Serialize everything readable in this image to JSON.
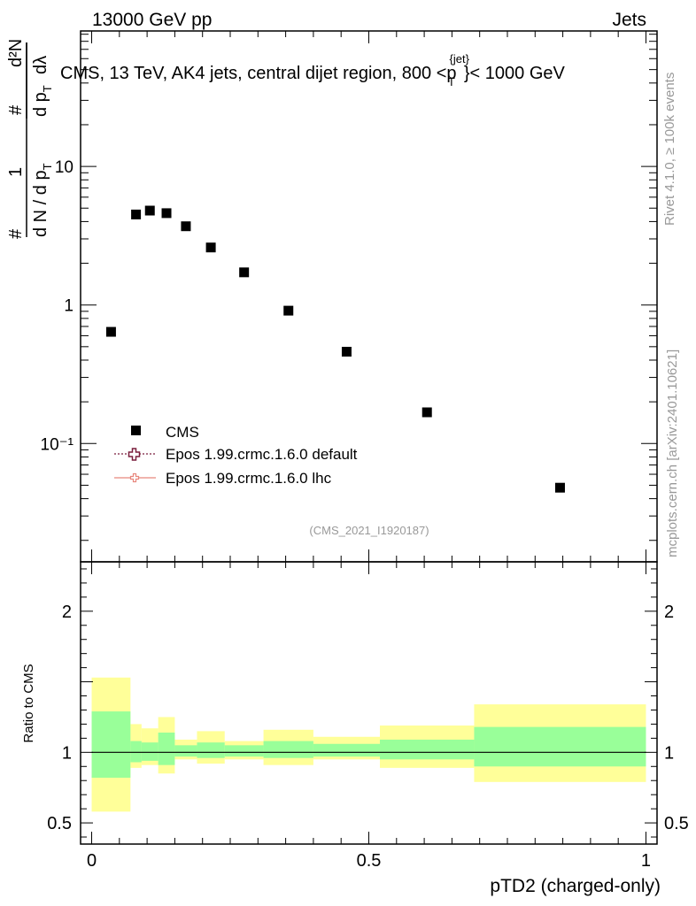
{
  "header": {
    "left": "13000 GeV pp",
    "right": "Jets"
  },
  "title": {
    "main": "CMS, 13 TeV, AK4 jets, central dijet region, 800 <p",
    "sup": "{jet}",
    "sub": "T",
    "end": "}< 1000 GeV"
  },
  "side_text": {
    "rivet": "Rivet 4.1.0, ≥ 100k events",
    "mcplots": "mcplots.cern.ch [arXiv:2401.10621]"
  },
  "analysis_id": "(CMS_2021_I1920187)",
  "ylabel_top": {
    "hash": "#",
    "one": "1",
    "denom": "d N / d p",
    "denom_sub": "T",
    "num": "d²N",
    "den2": "d p",
    "den2_sub": "T",
    "dlambda": "dλ"
  },
  "ratio_ylabel": "Ratio to CMS",
  "xlabel": "pTD2 (charged-only)",
  "legend": [
    {
      "label": "CMS",
      "style": "square",
      "color": "#000000"
    },
    {
      "label": "Epos 1.99.crmc.1.6.0 default",
      "style": "open-cross-dotted",
      "color": "#7a1f3d"
    },
    {
      "label": "Epos 1.99.crmc.1.6.0 lhc",
      "style": "cross-solid",
      "color": "#e8867c"
    }
  ],
  "colors": {
    "band_inner": "#99ff99",
    "band_outer": "#ffff99",
    "marker": "#000000"
  },
  "chart_data": [
    {
      "type": "scatter",
      "panel": "main",
      "yscale": "log",
      "ylim": [
        0.014,
        95
      ],
      "xlim": [
        -0.02,
        1.02
      ],
      "ytick_labels": [
        "10",
        "1",
        "10⁻¹"
      ],
      "ytick_values": [
        10,
        1,
        0.1
      ],
      "series": [
        {
          "name": "CMS",
          "x": [
            0.035,
            0.08,
            0.105,
            0.135,
            0.17,
            0.215,
            0.275,
            0.355,
            0.46,
            0.605,
            0.845
          ],
          "y": [
            0.64,
            4.5,
            4.8,
            4.6,
            3.7,
            2.6,
            1.72,
            0.91,
            0.46,
            0.168,
            0.048
          ]
        }
      ]
    },
    {
      "type": "area",
      "panel": "ratio",
      "ylim": [
        0.35,
        2.35
      ],
      "xlim": [
        -0.02,
        1.02
      ],
      "xtick_labels": [
        "0",
        "0.5",
        "1"
      ],
      "xtick_values": [
        0,
        0.5,
        1
      ],
      "ytick_labels": [
        "0.5",
        "1",
        "2"
      ],
      "ytick_values": [
        0.5,
        1,
        2
      ],
      "reference_line": 1,
      "bins": [
        {
          "x0": 0.0,
          "x1": 0.07,
          "inner": [
            0.82,
            1.29
          ],
          "outer": [
            0.58,
            1.53
          ]
        },
        {
          "x0": 0.07,
          "x1": 0.09,
          "inner": [
            0.93,
            1.08
          ],
          "outer": [
            0.89,
            1.2
          ]
        },
        {
          "x0": 0.09,
          "x1": 0.12,
          "inner": [
            0.94,
            1.07
          ],
          "outer": [
            0.91,
            1.17
          ]
        },
        {
          "x0": 0.12,
          "x1": 0.15,
          "inner": [
            0.91,
            1.14
          ],
          "outer": [
            0.85,
            1.25
          ]
        },
        {
          "x0": 0.15,
          "x1": 0.19,
          "inner": [
            0.97,
            1.05
          ],
          "outer": [
            0.95,
            1.09
          ]
        },
        {
          "x0": 0.19,
          "x1": 0.24,
          "inner": [
            0.96,
            1.07
          ],
          "outer": [
            0.92,
            1.15
          ]
        },
        {
          "x0": 0.24,
          "x1": 0.31,
          "inner": [
            0.97,
            1.05
          ],
          "outer": [
            0.95,
            1.08
          ]
        },
        {
          "x0": 0.31,
          "x1": 0.4,
          "inner": [
            0.96,
            1.08
          ],
          "outer": [
            0.91,
            1.16
          ]
        },
        {
          "x0": 0.4,
          "x1": 0.52,
          "inner": [
            0.97,
            1.06
          ],
          "outer": [
            0.95,
            1.11
          ]
        },
        {
          "x0": 0.52,
          "x1": 0.69,
          "inner": [
            0.95,
            1.09
          ],
          "outer": [
            0.89,
            1.19
          ]
        },
        {
          "x0": 0.69,
          "x1": 1.0,
          "inner": [
            0.9,
            1.18
          ],
          "outer": [
            0.79,
            1.34
          ]
        }
      ]
    }
  ]
}
